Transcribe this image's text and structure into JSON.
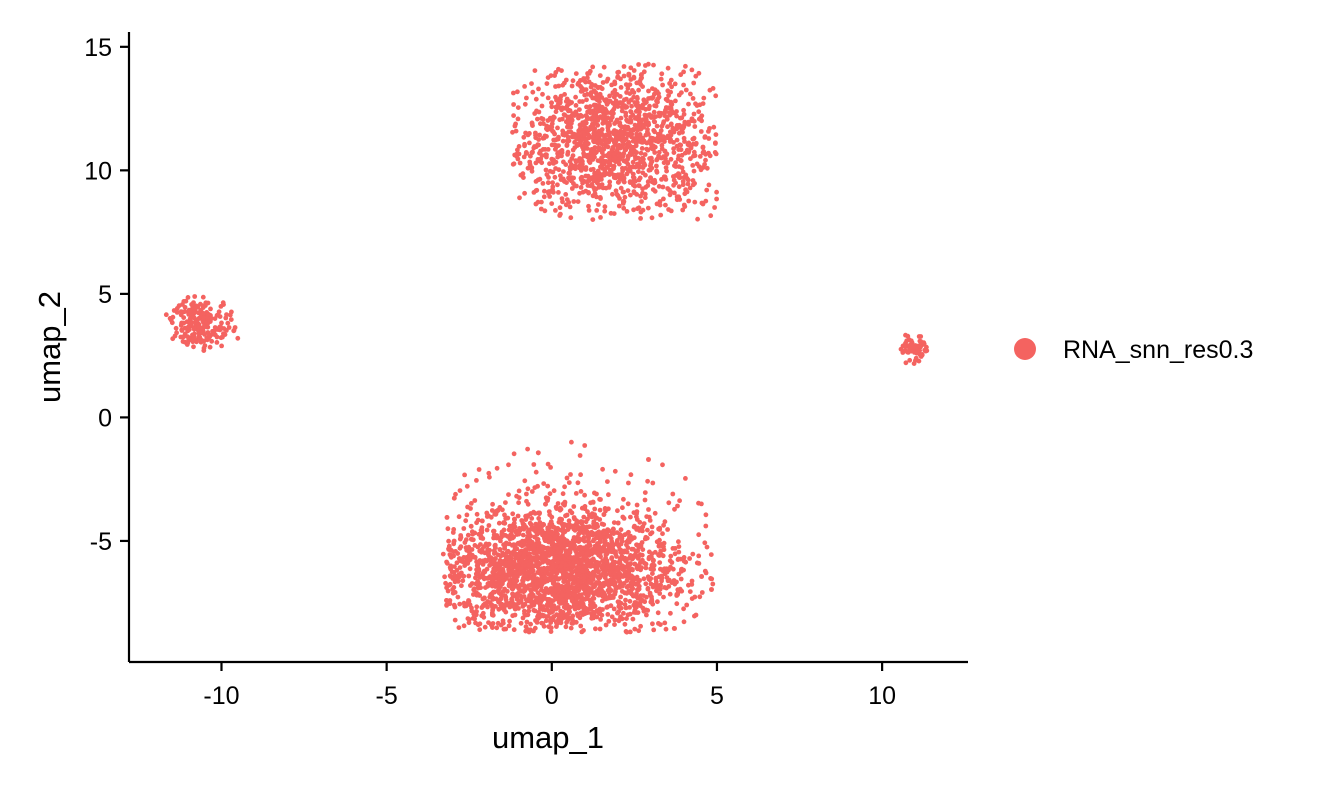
{
  "chart_data": {
    "type": "scatter",
    "title": "",
    "xlabel": "umap_1",
    "ylabel": "umap_2",
    "xlim": [
      -12.8,
      12.6
    ],
    "ylim": [
      -9.9,
      15.6
    ],
    "x_ticks": [
      -10,
      -5,
      0,
      5,
      10
    ],
    "y_ticks": [
      -5,
      0,
      5,
      10,
      15
    ],
    "x_tick_labels": [
      "-10",
      "-5",
      "0",
      "5",
      "10"
    ],
    "y_tick_labels": [
      "-5",
      "0",
      "5",
      "10",
      "15"
    ],
    "grid": false,
    "legend": {
      "position": "right",
      "entries": [
        "RNA_snn_res0.3"
      ]
    },
    "point_color": "#F46360",
    "series": [
      {
        "name": "RNA_snn_res0.3",
        "clusters": [
          {
            "center": [
              1.8,
              11.2
            ],
            "spread": [
              1.6,
              1.5
            ],
            "count": 1400,
            "note_x_range": [
              -1.2,
              5.0
            ],
            "note_y_range": [
              8.0,
              14.3
            ]
          },
          {
            "center": [
              -10.6,
              3.8
            ],
            "spread": [
              0.45,
              0.5
            ],
            "count": 220,
            "note_x_range": [
              -11.8,
              -9.5
            ],
            "note_y_range": [
              2.5,
              4.9
            ]
          },
          {
            "center": [
              0.2,
              -6.2
            ],
            "spread": [
              1.8,
              1.3
            ],
            "count": 2600,
            "note_x_range": [
              -3.3,
              4.9
            ],
            "note_y_range": [
              -8.7,
              -0.8
            ]
          },
          {
            "center": [
              11.0,
              2.7
            ],
            "spread": [
              0.2,
              0.3
            ],
            "count": 60,
            "note_x_range": [
              10.5,
              11.4
            ],
            "note_y_range": [
              1.9,
              3.4
            ]
          }
        ]
      }
    ]
  }
}
